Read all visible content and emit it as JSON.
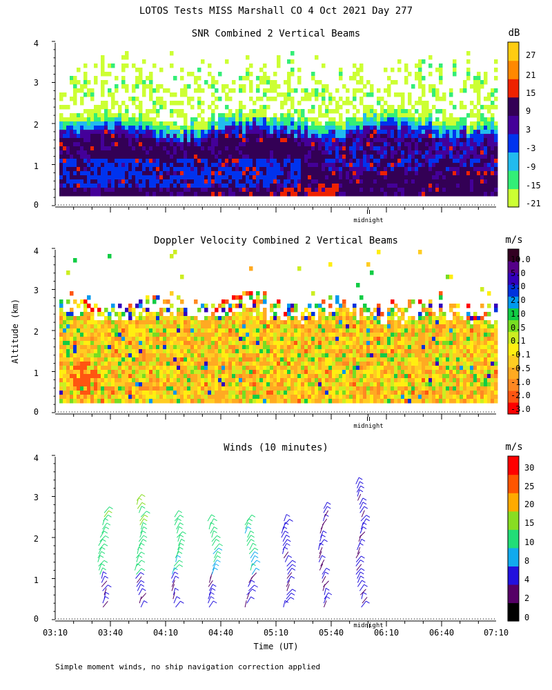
{
  "header": {
    "title": "LOTOS Tests MISS Marshall CO   4 Oct 2021 Day 277",
    "footnote": "Simple moment winds, no ship navigation correction applied"
  },
  "colors": {
    "snr": [
      "#ccff33",
      "#33ee77",
      "#22bbee",
      "#0033ee",
      "#440099",
      "#330055",
      "#ee2200",
      "#ff8800",
      "#ffcc11"
    ],
    "vel": [
      "#ff0000",
      "#ff5511",
      "#ff8822",
      "#ffaa22",
      "#ffcc22",
      "#ffee11",
      "#ccee22",
      "#77dd22",
      "#11cc44",
      "#0099ee",
      "#0033dd",
      "#3300bb",
      "#550088",
      "#330022"
    ],
    "wind": [
      "#000000",
      "#550066",
      "#2211dd",
      "#11aaee",
      "#22dd77",
      "#88dd22",
      "#ffaa00",
      "#ff5500",
      "#ff0000"
    ]
  },
  "chart_data": [
    {
      "type": "heatmap",
      "title": "SNR Combined 2 Vertical Beams",
      "units": "dB",
      "xlabel": "",
      "ylabel": "",
      "ylim": [
        0,
        4
      ],
      "yticks": [
        "0",
        "1",
        "2",
        "3",
        "4"
      ],
      "marker": "midnight",
      "colorbar_labels": [
        "-21",
        "-15",
        "-9",
        "-3",
        "3",
        "9",
        "15",
        "21",
        "27"
      ]
    },
    {
      "type": "heatmap",
      "title": "Doppler Velocity Combined 2 Vertical Beams",
      "units": "m/s",
      "xlabel": "",
      "ylabel": "Altitude (km)",
      "ylim": [
        0,
        4
      ],
      "yticks": [
        "0",
        "1",
        "2",
        "3",
        "4"
      ],
      "marker": "midnight",
      "colorbar_labels": [
        "-3.0",
        "-2.0",
        "-1.0",
        "-0.5",
        "-0.1",
        "0.1",
        "0.5",
        "1.0",
        "2.0",
        "3.0",
        "5.0",
        "10.0"
      ]
    },
    {
      "type": "scatter",
      "title": "Winds (10 minutes)",
      "units": "m/s",
      "xlabel": "Time (UT)",
      "ylabel": "",
      "ylim": [
        0,
        4
      ],
      "yticks": [
        "0",
        "1",
        "2",
        "3",
        "4"
      ],
      "marker": "midnight",
      "colorbar_labels": [
        "0",
        "2",
        "4",
        "8",
        "10",
        "15",
        "20",
        "25",
        "30"
      ],
      "xticks": [
        "03:10",
        "03:40",
        "04:10",
        "04:40",
        "05:10",
        "05:40",
        "06:10",
        "06:40",
        "07:10"
      ],
      "profile_times_hours": [
        3.58,
        3.92,
        4.25,
        4.58,
        4.92,
        5.25,
        5.58,
        5.92
      ],
      "profiles": [
        {
          "bottom_km": 0.3,
          "top_km": 2.65,
          "speed": 12
        },
        {
          "bottom_km": 0.3,
          "top_km": 2.95,
          "speed": 12
        },
        {
          "bottom_km": 0.3,
          "top_km": 2.6,
          "speed": 10
        },
        {
          "bottom_km": 0.3,
          "top_km": 2.45,
          "speed": 10
        },
        {
          "bottom_km": 0.3,
          "top_km": 2.5,
          "speed": 9
        },
        {
          "bottom_km": 0.3,
          "top_km": 2.5,
          "speed": 5
        },
        {
          "bottom_km": 0.3,
          "top_km": 2.75,
          "speed": 4
        },
        {
          "bottom_km": 0.3,
          "top_km": 3.4,
          "speed": 4
        }
      ]
    }
  ]
}
